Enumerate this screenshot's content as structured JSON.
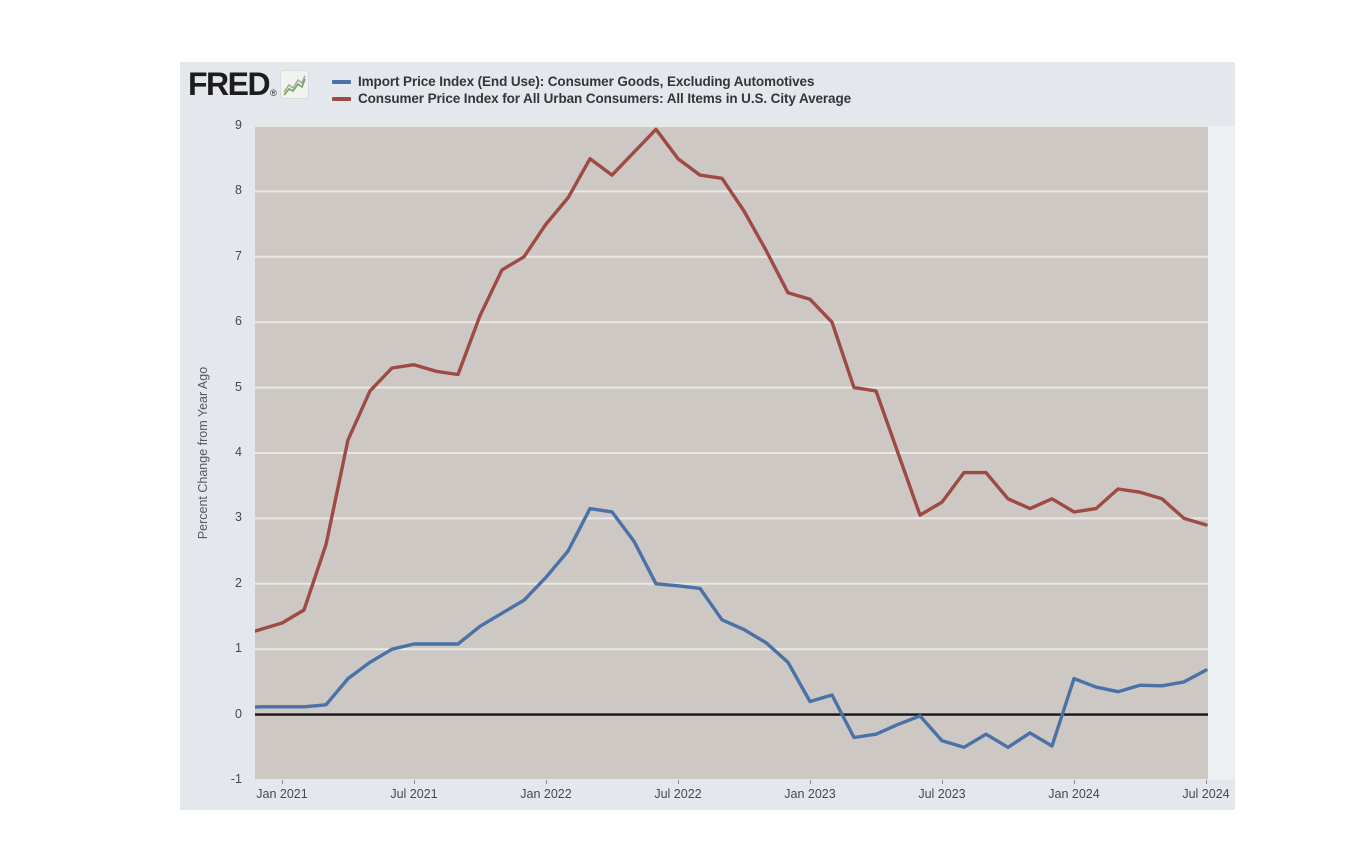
{
  "header": {
    "logo": {
      "text": "FRED",
      "registered": "®",
      "icon": "fred-sparkline-icon"
    }
  },
  "chart_data": {
    "type": "line",
    "title": "",
    "ylabel": "Percent Change from Year Ago",
    "ylim": [
      -1,
      9
    ],
    "y_ticks": [
      9,
      8,
      7,
      6,
      5,
      4,
      3,
      2,
      1,
      0,
      -1
    ],
    "x_tick_labels": [
      "Jan 2021",
      "Jul 2021",
      "Jan 2022",
      "Jul 2022",
      "Jan 2023",
      "Jul 2023",
      "Jan 2024",
      "Jul 2024"
    ],
    "x_tick_month_indices": [
      2,
      8,
      14,
      20,
      26,
      32,
      38,
      44
    ],
    "grid": true,
    "legend_position": "top",
    "zero_line_color": "#141414",
    "months": [
      "Nov 2020",
      "Dec 2020",
      "Jan 2021",
      "Feb 2021",
      "Mar 2021",
      "Apr 2021",
      "May 2021",
      "Jun 2021",
      "Jul 2021",
      "Aug 2021",
      "Sep 2021",
      "Oct 2021",
      "Nov 2021",
      "Dec 2021",
      "Jan 2022",
      "Feb 2022",
      "Mar 2022",
      "Apr 2022",
      "May 2022",
      "Jun 2022",
      "Jul 2022",
      "Aug 2022",
      "Sep 2022",
      "Oct 2022",
      "Nov 2022",
      "Dec 2022",
      "Jan 2023",
      "Feb 2023",
      "Mar 2023",
      "Apr 2023",
      "May 2023",
      "Jun 2023",
      "Jul 2023",
      "Aug 2023",
      "Sep 2023",
      "Oct 2023",
      "Nov 2023",
      "Dec 2023",
      "Jan 2024",
      "Feb 2024",
      "Mar 2024",
      "Apr 2024",
      "May 2024",
      "Jun 2024",
      "Jul 2024"
    ],
    "series": [
      {
        "name": "Import Price Index (End Use): Consumer Goods, Excluding Automotives",
        "color": "#4a72a6",
        "values": [
          0.1,
          0.12,
          0.12,
          0.12,
          0.15,
          0.55,
          0.8,
          1.0,
          1.08,
          1.08,
          1.08,
          1.35,
          1.55,
          1.75,
          2.1,
          2.5,
          3.15,
          3.1,
          2.65,
          2.0,
          1.97,
          1.93,
          1.45,
          1.3,
          1.1,
          0.8,
          0.2,
          0.3,
          -0.35,
          -0.3,
          -0.15,
          -0.02,
          -0.4,
          -0.5,
          -0.3,
          -0.5,
          -0.28,
          -0.48,
          0.55,
          0.42,
          0.35,
          0.45,
          0.44,
          0.5,
          0.68
        ]
      },
      {
        "name": "Consumer Price Index for All Urban Consumers: All Items in U.S. City Average",
        "color": "#9d4b44",
        "values": [
          1.2,
          1.3,
          1.4,
          1.6,
          2.6,
          4.2,
          4.95,
          5.3,
          5.35,
          5.25,
          5.2,
          6.1,
          6.8,
          7.0,
          7.5,
          7.9,
          8.5,
          8.25,
          8.6,
          8.95,
          8.5,
          8.25,
          8.2,
          7.7,
          7.1,
          6.45,
          6.35,
          6.0,
          5.0,
          4.95,
          4.0,
          3.05,
          3.25,
          3.7,
          3.7,
          3.3,
          3.15,
          3.3,
          3.1,
          3.15,
          3.45,
          3.4,
          3.3,
          3.0,
          2.9
        ]
      }
    ]
  },
  "colors": {
    "page_background": "#ffffff",
    "card_background": "#e4e8ec",
    "plot_background": "#cdc8c3",
    "gridline": "#ebe8e4",
    "right_strip": "#edf0f3",
    "tick_text": "#46494d",
    "legend_text": "#333639"
  }
}
